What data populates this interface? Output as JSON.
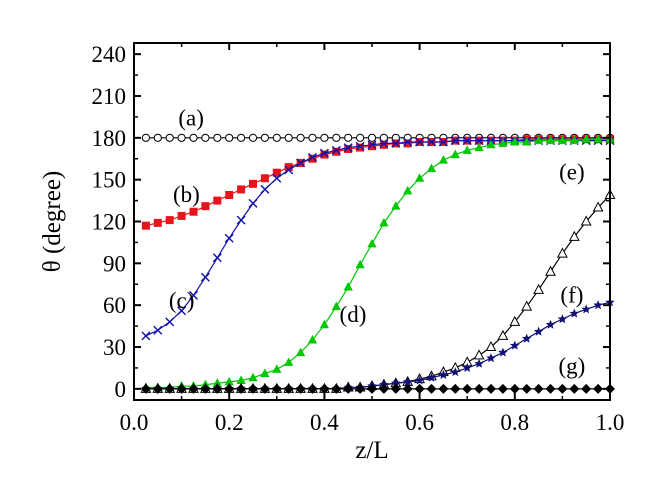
{
  "chart_data": {
    "type": "line",
    "xlabel": "z/L",
    "ylabel": "θ (degree)",
    "xlim": [
      0.0,
      1.0
    ],
    "ylim": [
      -8,
      248
    ],
    "xticks": [
      0.0,
      0.2,
      0.4,
      0.6,
      0.8,
      1.0
    ],
    "xtick_labels": [
      "0.0",
      "0.2",
      "0.4",
      "0.6",
      "0.8",
      "1.0"
    ],
    "yticks": [
      0,
      30,
      60,
      90,
      120,
      150,
      180,
      210,
      240
    ],
    "ytick_labels": [
      "0",
      "30",
      "60",
      "90",
      "120",
      "150",
      "180",
      "210",
      "240"
    ],
    "grid": false,
    "legend": "none",
    "x": [
      0.025,
      0.05,
      0.075,
      0.1,
      0.125,
      0.15,
      0.175,
      0.2,
      0.225,
      0.25,
      0.275,
      0.3,
      0.325,
      0.35,
      0.375,
      0.4,
      0.425,
      0.45,
      0.475,
      0.5,
      0.525,
      0.55,
      0.575,
      0.6,
      0.625,
      0.65,
      0.675,
      0.7,
      0.725,
      0.75,
      0.775,
      0.8,
      0.825,
      0.85,
      0.875,
      0.9,
      0.925,
      0.95,
      0.975,
      1.0
    ],
    "series": [
      {
        "name": "(a)",
        "color": "#000000",
        "marker": "circle-open",
        "values": [
          180,
          180,
          180,
          180,
          180,
          180,
          180,
          180,
          180,
          180,
          180,
          180,
          180,
          180,
          180,
          180,
          180,
          180,
          180,
          180,
          180,
          180,
          180,
          180,
          180,
          180,
          180,
          180,
          180,
          180,
          180,
          180,
          180,
          180,
          180,
          180,
          180,
          180,
          180,
          180
        ]
      },
      {
        "name": "(b)",
        "color": "#e8141c",
        "marker": "square",
        "values": [
          117,
          119,
          121,
          124,
          127,
          131,
          135,
          139,
          143,
          147,
          151,
          155,
          159,
          162,
          165,
          168,
          170,
          172,
          173,
          174,
          175,
          176,
          176,
          177,
          177,
          177,
          178,
          178,
          178,
          178,
          178,
          178,
          179,
          179,
          179,
          179,
          179,
          179,
          179,
          179
        ]
      },
      {
        "name": "(c)",
        "color": "#1010a8",
        "marker": "x",
        "values": [
          38,
          42,
          48,
          56,
          67,
          80,
          94,
          108,
          121,
          133,
          143,
          151,
          157,
          162,
          166,
          169,
          171,
          173,
          174,
          175,
          176,
          176,
          177,
          177,
          177,
          177,
          178,
          178,
          178,
          178,
          178,
          178,
          178,
          178,
          178,
          178,
          178,
          178,
          178,
          178
        ]
      },
      {
        "name": "(d)",
        "color": "#00c800",
        "marker": "triangle",
        "values": [
          1,
          1,
          1,
          2,
          2,
          3,
          4,
          5,
          6,
          8,
          11,
          14,
          19,
          26,
          35,
          46,
          59,
          73,
          89,
          104,
          119,
          131,
          142,
          151,
          158,
          164,
          168,
          171,
          173,
          175,
          176,
          177,
          177,
          178,
          178,
          178,
          178,
          179,
          179,
          179
        ]
      },
      {
        "name": "(e)",
        "color": "#000000",
        "marker": "triangle-open",
        "values": [
          0,
          0,
          0,
          0,
          0,
          0,
          0,
          0,
          0,
          0,
          0,
          0,
          0,
          0,
          0,
          0,
          0,
          1,
          1,
          2,
          3,
          4,
          5,
          7,
          9,
          12,
          15,
          19,
          24,
          30,
          38,
          48,
          59,
          71,
          84,
          97,
          109,
          120,
          130,
          139
        ]
      },
      {
        "name": "(f)",
        "color": "#101078",
        "marker": "star",
        "values": [
          0,
          0,
          0,
          0,
          0,
          0,
          0,
          0,
          0,
          0,
          0,
          0,
          0,
          0,
          0,
          0,
          0,
          1,
          1,
          2,
          3,
          4,
          5,
          6,
          8,
          10,
          12,
          15,
          18,
          22,
          26,
          31,
          36,
          41,
          46,
          50,
          54,
          57,
          60,
          62
        ]
      },
      {
        "name": "(g)",
        "color": "#000000",
        "marker": "diamond",
        "values": [
          0,
          0,
          0,
          0,
          0,
          0,
          0,
          0,
          0,
          0,
          0,
          0,
          0,
          0,
          0,
          0,
          0,
          0,
          0,
          0,
          0,
          0,
          0,
          0,
          0,
          0,
          0,
          0,
          0,
          0,
          0,
          0,
          0,
          0,
          0,
          0,
          0,
          0,
          0,
          0
        ]
      }
    ],
    "annotations": [
      {
        "text": "(a)",
        "x": 0.12,
        "y": 189
      },
      {
        "text": "(b)",
        "x": 0.11,
        "y": 134
      },
      {
        "text": "(c)",
        "x": 0.1,
        "y": 58
      },
      {
        "text": "(d)",
        "x": 0.46,
        "y": 48
      },
      {
        "text": "(e)",
        "x": 0.92,
        "y": 150
      },
      {
        "text": "(f)",
        "x": 0.92,
        "y": 62
      },
      {
        "text": "(g)",
        "x": 0.92,
        "y": 11
      }
    ]
  }
}
